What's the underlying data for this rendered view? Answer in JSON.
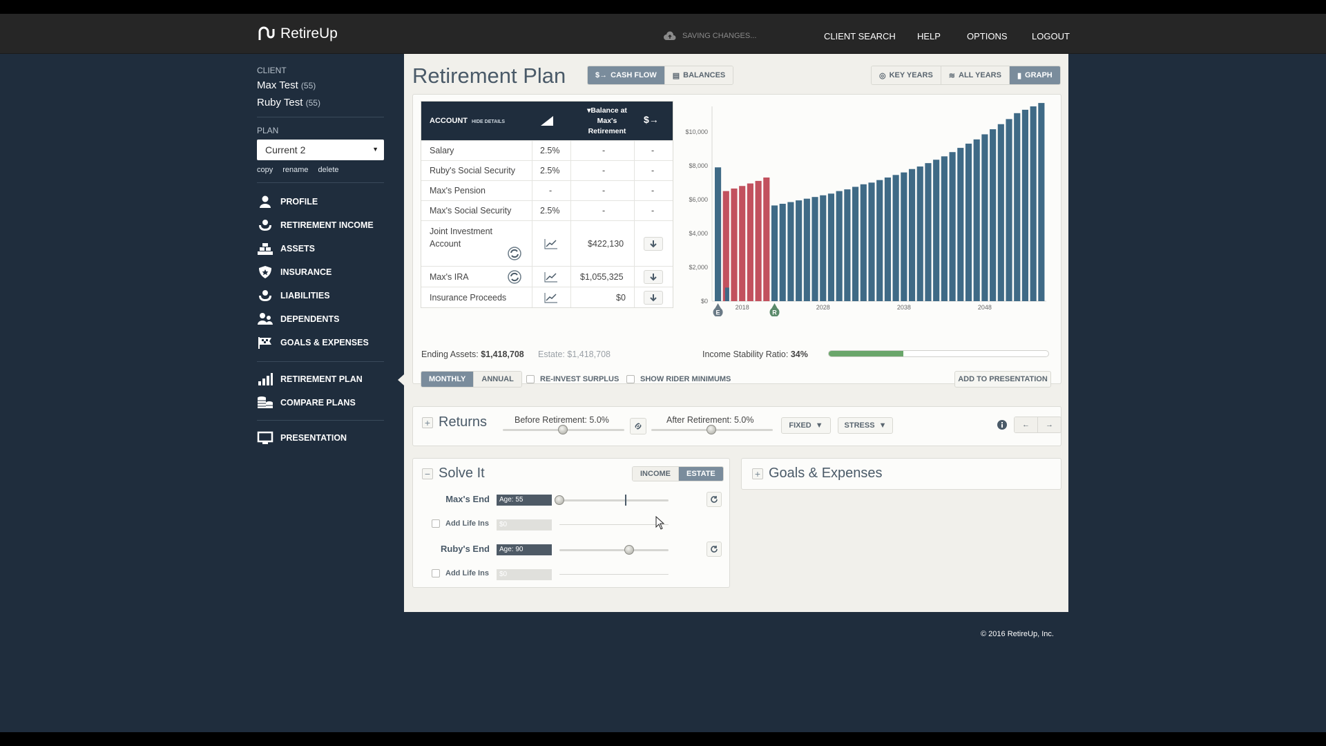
{
  "app": {
    "name": "RetireUp",
    "saving_status": "SAVING CHANGES..."
  },
  "nav": [
    "CLIENT SEARCH",
    "HELP",
    "OPTIONS",
    "LOGOUT"
  ],
  "sidebar": {
    "client_label": "CLIENT",
    "clients": [
      {
        "name": "Max Test",
        "age": "(55)"
      },
      {
        "name": "Ruby Test",
        "age": "(55)"
      }
    ],
    "plan_label": "PLAN",
    "plan_value": "Current 2",
    "plan_links": [
      "copy",
      "rename",
      "delete"
    ],
    "menu": [
      "PROFILE",
      "RETIREMENT INCOME",
      "ASSETS",
      "INSURANCE",
      "LIABILITIES",
      "DEPENDENTS",
      "GOALS & EXPENSES"
    ],
    "menu2": [
      "RETIREMENT PLAN",
      "COMPARE PLANS"
    ],
    "menu3": [
      "PRESENTATION"
    ]
  },
  "main": {
    "title": "Retirement Plan",
    "view_tabs": [
      "CASH FLOW",
      "BALANCES"
    ],
    "range_tabs": [
      "KEY YEARS",
      "ALL YEARS",
      "GRAPH"
    ],
    "table": {
      "col_account": "ACCOUNT",
      "hide_details": "HIDE DETAILS",
      "col_balance": "Balance at Max's Retirement",
      "col_flow": "$→",
      "rows": [
        {
          "name": "Salary",
          "rate": "2.5%",
          "balance": "-",
          "flow": "-"
        },
        {
          "name": "Ruby's Social Security",
          "rate": "2.5%",
          "balance": "-",
          "flow": "-"
        },
        {
          "name": "Max's Pension",
          "rate": "-",
          "balance": "-",
          "flow": "-"
        },
        {
          "name": "Max's Social Security",
          "rate": "2.5%",
          "balance": "-",
          "flow": "-"
        },
        {
          "name": "Joint Investment Account",
          "rate": "",
          "balance": "$422,130",
          "flow": ""
        },
        {
          "name": "Max's IRA",
          "rate": "",
          "balance": "$1,055,325",
          "flow": ""
        },
        {
          "name": "Insurance Proceeds",
          "rate": "",
          "balance": "$0",
          "flow": ""
        }
      ]
    },
    "summary": {
      "ending_assets_label": "Ending Assets:",
      "ending_assets": "$1,418,708",
      "estate_label": "Estate:",
      "estate": "$1,418,708",
      "isr_label": "Income Stability Ratio:",
      "isr": "34%",
      "isr_fraction": 0.34
    },
    "controls": {
      "freq_tabs": [
        "MONTHLY",
        "ANNUAL"
      ],
      "reinvest": "RE-INVEST SURPLUS",
      "rider": "SHOW RIDER MINIMUMS",
      "add_presentation": "ADD TO PRESENTATION"
    },
    "returns": {
      "title": "Returns",
      "before_label": "Before Retirement:",
      "before_value": "5.0%",
      "after_label": "After Retirement:",
      "after_value": "5.0%",
      "fixed": "FIXED",
      "stress": "STRESS"
    },
    "solve": {
      "title": "Solve It",
      "tabs": [
        "INCOME",
        "ESTATE"
      ],
      "max_end_label": "Max's End",
      "max_end_age": "Age: 55",
      "add_life_ins": "Add Life Ins",
      "life_value": "$0",
      "ruby_end_label": "Ruby's End",
      "ruby_end_age": "Age: 90"
    },
    "goals": {
      "title": "Goals & Expenses"
    }
  },
  "chart_data": {
    "type": "bar",
    "ylim": [
      0,
      11500
    ],
    "yticks": [
      "$0",
      "$2,000",
      "$4,000",
      "$6,000",
      "$8,000",
      "$10,000"
    ],
    "ytick_values": [
      0,
      2000,
      4000,
      6000,
      8000,
      10000
    ],
    "xticks": [
      "2018",
      "2028",
      "2038",
      "2048"
    ],
    "markers": [
      "E",
      "R"
    ],
    "colors": {
      "blue": "#3f6a86",
      "red": "#c2515e"
    },
    "bars": [
      {
        "v": 7900,
        "c": "blue"
      },
      {
        "v": 6500,
        "c": "red",
        "sub": 800
      },
      {
        "v": 6650,
        "c": "red"
      },
      {
        "v": 6800,
        "c": "red"
      },
      {
        "v": 6950,
        "c": "red"
      },
      {
        "v": 7100,
        "c": "red"
      },
      {
        "v": 7300,
        "c": "red"
      },
      {
        "v": 5650,
        "c": "blue"
      },
      {
        "v": 5750,
        "c": "blue"
      },
      {
        "v": 5850,
        "c": "blue"
      },
      {
        "v": 5950,
        "c": "blue"
      },
      {
        "v": 6050,
        "c": "blue"
      },
      {
        "v": 6150,
        "c": "blue"
      },
      {
        "v": 6250,
        "c": "blue"
      },
      {
        "v": 6350,
        "c": "blue"
      },
      {
        "v": 6500,
        "c": "blue"
      },
      {
        "v": 6600,
        "c": "blue"
      },
      {
        "v": 6750,
        "c": "blue"
      },
      {
        "v": 6900,
        "c": "blue"
      },
      {
        "v": 7000,
        "c": "blue"
      },
      {
        "v": 7150,
        "c": "blue"
      },
      {
        "v": 7300,
        "c": "blue"
      },
      {
        "v": 7450,
        "c": "blue"
      },
      {
        "v": 7600,
        "c": "blue"
      },
      {
        "v": 7800,
        "c": "blue"
      },
      {
        "v": 7950,
        "c": "blue"
      },
      {
        "v": 8150,
        "c": "blue"
      },
      {
        "v": 8350,
        "c": "blue"
      },
      {
        "v": 8550,
        "c": "blue"
      },
      {
        "v": 8800,
        "c": "blue"
      },
      {
        "v": 9050,
        "c": "blue"
      },
      {
        "v": 9300,
        "c": "blue"
      },
      {
        "v": 9550,
        "c": "blue"
      },
      {
        "v": 9850,
        "c": "blue"
      },
      {
        "v": 10150,
        "c": "blue"
      },
      {
        "v": 10450,
        "c": "blue"
      },
      {
        "v": 10750,
        "c": "blue"
      },
      {
        "v": 11100,
        "c": "blue"
      },
      {
        "v": 11300,
        "c": "blue"
      },
      {
        "v": 11500,
        "c": "blue"
      },
      {
        "v": 11700,
        "c": "blue"
      }
    ]
  },
  "footer": "© 2016 RetireUp, Inc."
}
